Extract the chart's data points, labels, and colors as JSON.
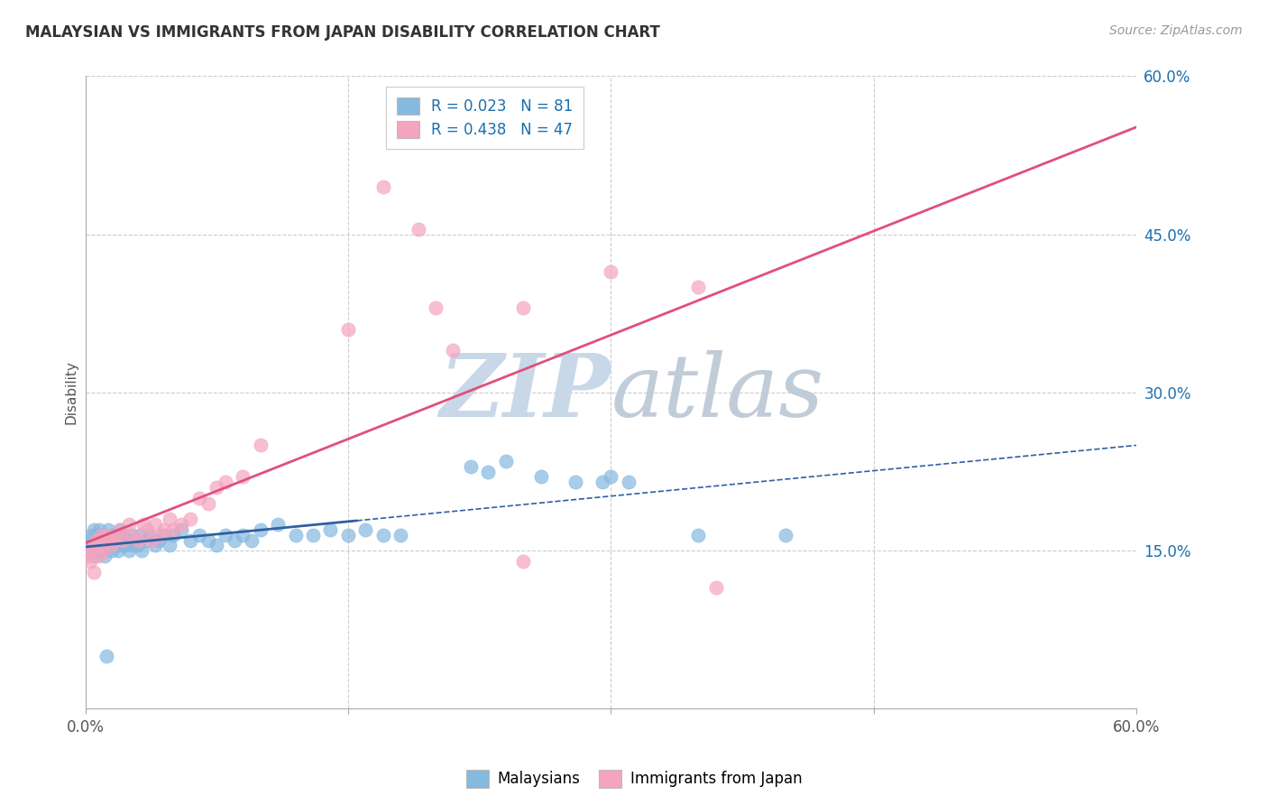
{
  "title": "MALAYSIAN VS IMMIGRANTS FROM JAPAN DISABILITY CORRELATION CHART",
  "source": "Source: ZipAtlas.com",
  "ylabel": "Disability",
  "xlim": [
    0.0,
    0.6
  ],
  "ylim": [
    0.0,
    0.6
  ],
  "x_ticks": [
    0.0,
    0.15,
    0.3,
    0.45,
    0.6
  ],
  "x_tick_labels": [
    "0.0%",
    "",
    "",
    "",
    "60.0%"
  ],
  "y_ticks_right": [
    0.15,
    0.3,
    0.45,
    0.6
  ],
  "y_tick_labels_right": [
    "15.0%",
    "30.0%",
    "45.0%",
    "60.0%"
  ],
  "malaysians_R": "0.023",
  "malaysians_N": 81,
  "japan_R": "0.438",
  "japan_N": 47,
  "blue_color": "#85b9e0",
  "pink_color": "#f4a4be",
  "blue_line_color": "#3060a0",
  "pink_line_color": "#e0507a",
  "legend_text_color": "#1a6faf",
  "background_color": "#ffffff",
  "grid_color": "#cccccc",
  "watermark_zip_color": "#c8d8e8",
  "watermark_atlas_color": "#c0ccd8",
  "malaysians_x": [
    0.002,
    0.003,
    0.004,
    0.004,
    0.005,
    0.005,
    0.005,
    0.006,
    0.006,
    0.007,
    0.007,
    0.007,
    0.008,
    0.008,
    0.008,
    0.009,
    0.009,
    0.01,
    0.01,
    0.01,
    0.011,
    0.011,
    0.012,
    0.012,
    0.013,
    0.013,
    0.014,
    0.015,
    0.015,
    0.016,
    0.017,
    0.018,
    0.019,
    0.02,
    0.021,
    0.022,
    0.023,
    0.024,
    0.025,
    0.026,
    0.027,
    0.028,
    0.03,
    0.031,
    0.032,
    0.035,
    0.037,
    0.04,
    0.042,
    0.045,
    0.048,
    0.05,
    0.055,
    0.06,
    0.065,
    0.07,
    0.075,
    0.08,
    0.085,
    0.09,
    0.095,
    0.1,
    0.11,
    0.12,
    0.13,
    0.14,
    0.15,
    0.16,
    0.17,
    0.18,
    0.22,
    0.23,
    0.24,
    0.26,
    0.28,
    0.295,
    0.3,
    0.31,
    0.35,
    0.4,
    0.012
  ],
  "malaysians_y": [
    0.155,
    0.16,
    0.15,
    0.165,
    0.155,
    0.17,
    0.145,
    0.16,
    0.155,
    0.165,
    0.15,
    0.155,
    0.165,
    0.155,
    0.17,
    0.15,
    0.16,
    0.155,
    0.165,
    0.15,
    0.145,
    0.165,
    0.155,
    0.16,
    0.17,
    0.155,
    0.16,
    0.165,
    0.15,
    0.16,
    0.155,
    0.165,
    0.15,
    0.17,
    0.155,
    0.165,
    0.155,
    0.16,
    0.15,
    0.165,
    0.155,
    0.16,
    0.155,
    0.165,
    0.15,
    0.16,
    0.165,
    0.155,
    0.16,
    0.165,
    0.155,
    0.165,
    0.17,
    0.16,
    0.165,
    0.16,
    0.155,
    0.165,
    0.16,
    0.165,
    0.16,
    0.17,
    0.175,
    0.165,
    0.165,
    0.17,
    0.165,
    0.17,
    0.165,
    0.165,
    0.23,
    0.225,
    0.235,
    0.22,
    0.215,
    0.215,
    0.22,
    0.215,
    0.165,
    0.165,
    0.05
  ],
  "japan_x": [
    0.002,
    0.003,
    0.004,
    0.005,
    0.005,
    0.006,
    0.007,
    0.008,
    0.009,
    0.01,
    0.011,
    0.012,
    0.013,
    0.015,
    0.016,
    0.018,
    0.02,
    0.022,
    0.025,
    0.027,
    0.03,
    0.033,
    0.035,
    0.038,
    0.04,
    0.043,
    0.045,
    0.048,
    0.05,
    0.055,
    0.06,
    0.065,
    0.07,
    0.075,
    0.08,
    0.09,
    0.1,
    0.15,
    0.2,
    0.25,
    0.3,
    0.35,
    0.17,
    0.19,
    0.21,
    0.25,
    0.36
  ],
  "japan_y": [
    0.145,
    0.14,
    0.15,
    0.155,
    0.13,
    0.16,
    0.155,
    0.145,
    0.165,
    0.15,
    0.155,
    0.165,
    0.16,
    0.155,
    0.16,
    0.165,
    0.17,
    0.16,
    0.175,
    0.165,
    0.16,
    0.175,
    0.17,
    0.16,
    0.175,
    0.165,
    0.17,
    0.18,
    0.17,
    0.175,
    0.18,
    0.2,
    0.195,
    0.21,
    0.215,
    0.22,
    0.25,
    0.36,
    0.38,
    0.38,
    0.415,
    0.4,
    0.495,
    0.455,
    0.34,
    0.14,
    0.115
  ],
  "malaysia_line_solid_end": 0.15,
  "malaysia_line_dashed_start": 0.18,
  "malaysia_line_end": 0.6
}
